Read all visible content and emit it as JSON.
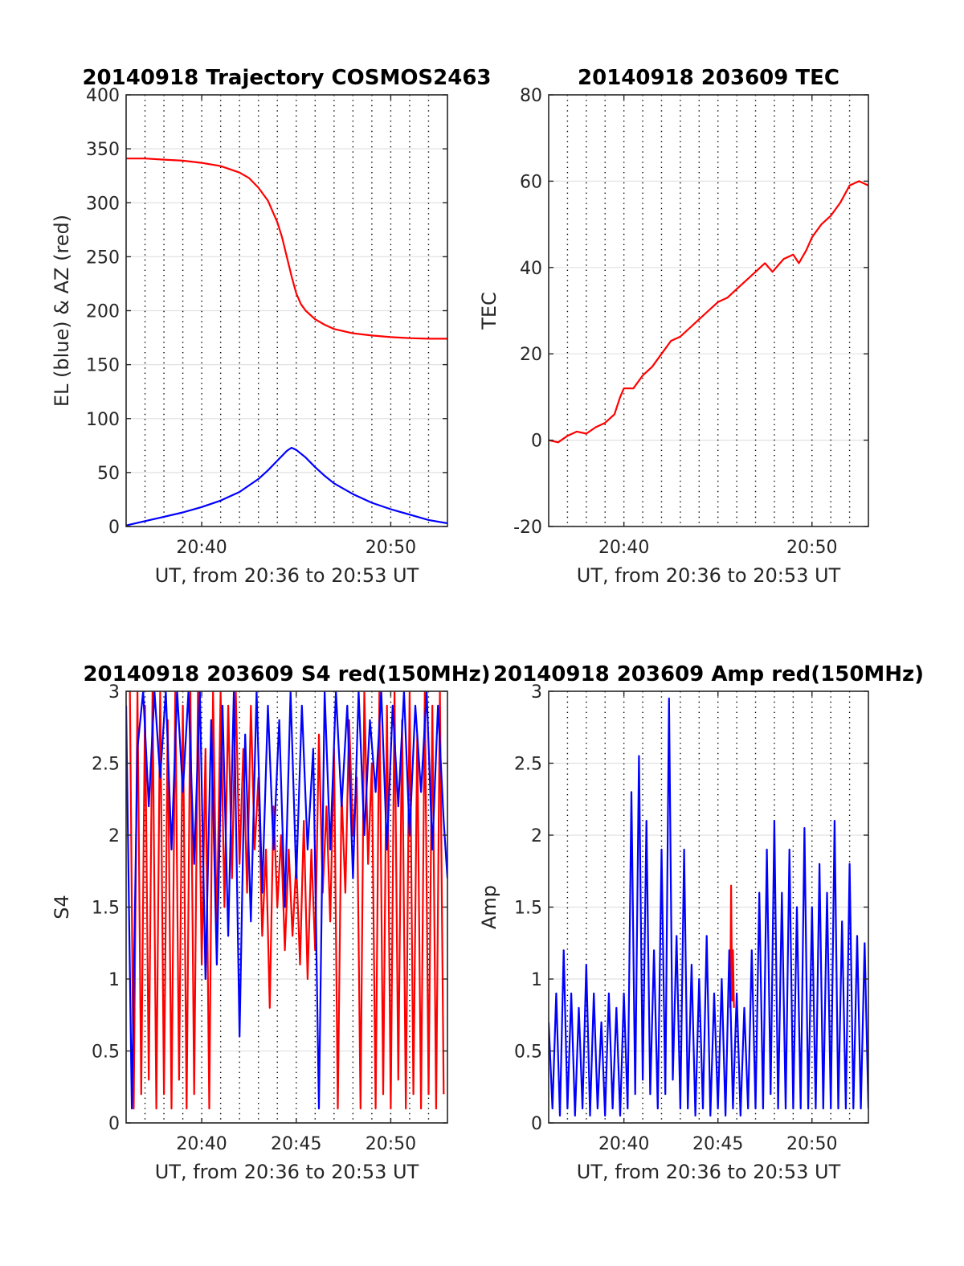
{
  "chart_data": [
    {
      "type": "line",
      "title": "20140918 Trajectory COSMOS2463",
      "xlabel": "UT, from 20:36 to 20:53 UT",
      "ylabel": "EL (blue) & AZ (red)",
      "xlim": [
        0,
        17
      ],
      "ylim": [
        0,
        400
      ],
      "yticks": [
        0,
        50,
        100,
        150,
        200,
        250,
        300,
        350,
        400
      ],
      "xticks": [
        {
          "value": 4,
          "label": "20:40"
        },
        {
          "value": 14,
          "label": "20:50"
        }
      ],
      "grid": true,
      "series": [
        {
          "color": "#ff0000",
          "x": [
            0,
            1,
            2,
            3,
            4,
            5,
            6,
            6.5,
            7,
            7.5,
            8,
            8.25,
            8.5,
            8.75,
            9,
            9.25,
            9.5,
            10,
            10.5,
            11,
            12,
            13,
            14,
            15,
            16,
            17
          ],
          "y": [
            341,
            341,
            340,
            339,
            337,
            334,
            328,
            323,
            314,
            302,
            282,
            268,
            250,
            232,
            216,
            206,
            200,
            192,
            187,
            183,
            179,
            177,
            175.5,
            174.5,
            174,
            174
          ]
        },
        {
          "color": "#0000ff",
          "x": [
            0,
            1,
            2,
            3,
            4,
            5,
            6,
            7,
            7.5,
            8,
            8.5,
            8.75,
            9,
            9.5,
            10,
            10.5,
            11,
            12,
            13,
            14,
            15,
            16,
            17
          ],
          "y": [
            1,
            5,
            9,
            13,
            18,
            24,
            32,
            44,
            52,
            61,
            70,
            73,
            71,
            64,
            55,
            47,
            40,
            30,
            22,
            16,
            11,
            6,
            3
          ]
        }
      ]
    },
    {
      "type": "line",
      "title": "20140918 203609 TEC",
      "xlabel": "UT, from 20:36 to 20:53 UT",
      "ylabel": "TEC",
      "xlim": [
        0,
        17
      ],
      "ylim": [
        -20,
        80
      ],
      "yticks": [
        -20,
        0,
        20,
        40,
        60,
        80
      ],
      "xticks": [
        {
          "value": 4,
          "label": "20:40"
        },
        {
          "value": 14,
          "label": "20:50"
        }
      ],
      "grid": true,
      "series": [
        {
          "color": "#ff0000",
          "x": [
            0,
            0.5,
            1,
            1.5,
            2,
            2.5,
            3,
            3.5,
            3.8,
            4,
            4.5,
            5,
            5.5,
            6,
            6.5,
            7,
            7.5,
            8,
            8.5,
            9,
            9.5,
            10,
            10.5,
            11,
            11.5,
            11.9,
            12.5,
            13,
            13.3,
            13.7,
            14,
            14.5,
            15,
            15.5,
            16,
            16.5,
            17
          ],
          "y": [
            0,
            -0.5,
            1,
            2,
            1.5,
            3,
            4,
            6,
            10,
            12,
            12,
            15,
            17,
            20,
            23,
            24,
            26,
            28,
            30,
            32,
            33,
            35,
            37,
            39,
            41,
            39,
            42,
            43,
            41,
            44,
            47,
            50,
            52,
            55,
            59,
            60,
            59
          ]
        }
      ]
    },
    {
      "type": "line",
      "title": "20140918 203609 S4 red(150MHz)",
      "xlabel": "UT, from 20:36 to 20:53 UT",
      "ylabel": "S4",
      "xlim": [
        0,
        17
      ],
      "ylim": [
        0,
        3
      ],
      "yticks": [
        0,
        0.5,
        1,
        1.5,
        2,
        2.5,
        3
      ],
      "xticks": [
        {
          "value": 4,
          "label": "20:40"
        },
        {
          "value": 9,
          "label": "20:45"
        },
        {
          "value": 14,
          "label": "20:50"
        }
      ],
      "grid": true,
      "series": [
        {
          "color": "#ff0000",
          "x": [
            0.2,
            0.4,
            0.6,
            0.8,
            1,
            1.2,
            1.4,
            1.6,
            1.8,
            2,
            2.2,
            2.4,
            2.6,
            2.8,
            3,
            3.2,
            3.4,
            3.6,
            3.8,
            4,
            4.2,
            4.4,
            4.6,
            4.8,
            5,
            5.2,
            5.4,
            5.6,
            5.8,
            6,
            6.2,
            6.4,
            6.6,
            6.8,
            7,
            7.2,
            7.4,
            7.6,
            7.8,
            8,
            8.2,
            8.4,
            8.6,
            8.8,
            9,
            9.2,
            9.4,
            9.6,
            9.8,
            10,
            10.2,
            10.4,
            10.6,
            10.8,
            11,
            11.2,
            11.4,
            11.6,
            11.8,
            12,
            12.2,
            12.4,
            12.6,
            12.8,
            13,
            13.2,
            13.4,
            13.6,
            13.8,
            14,
            14.2,
            14.4,
            14.6,
            14.8,
            15,
            15.2,
            15.4,
            15.6,
            15.8,
            16,
            16.2,
            16.4,
            16.6,
            16.8
          ],
          "y": [
            3,
            0.1,
            3,
            0.2,
            2.9,
            0.3,
            3,
            0.1,
            3,
            0.2,
            2.8,
            0.1,
            3,
            0.3,
            2.9,
            0.1,
            3,
            0.2,
            3,
            1.1,
            2.6,
            0.1,
            3,
            1.3,
            3,
            1.5,
            2.9,
            1.7,
            3,
            1.8,
            2.6,
            1.6,
            2.9,
            1.9,
            2.4,
            1.3,
            1.9,
            0.8,
            2.2,
            1.5,
            2.0,
            1.2,
            1.9,
            1.3,
            1.8,
            1.1,
            2.1,
            1.0,
            1.9,
            1.2,
            2.7,
            1.6,
            2.2,
            1.4,
            2.6,
            0.1,
            2.3,
            1.6,
            2.8,
            2.0,
            2.4,
            0.1,
            3,
            1.8,
            2.5,
            0.1,
            3,
            0.2,
            2.9,
            0.1,
            3,
            0.3,
            2.8,
            0.1,
            3,
            0.2,
            2.7,
            0.1,
            3,
            0.2,
            2.9,
            0.1,
            3,
            0.2
          ]
        },
        {
          "color": "#0000ff",
          "x": [
            0,
            0.3,
            0.6,
            0.9,
            1.2,
            1.5,
            1.8,
            2.1,
            2.4,
            2.7,
            3,
            3.3,
            3.6,
            3.9,
            4.2,
            4.5,
            4.8,
            5.1,
            5.4,
            5.7,
            6,
            6.3,
            6.6,
            6.9,
            7.2,
            7.5,
            7.8,
            8.1,
            8.4,
            8.7,
            9,
            9.3,
            9.6,
            9.9,
            10.2,
            10.5,
            10.8,
            11.1,
            11.4,
            11.7,
            12,
            12.3,
            12.6,
            12.9,
            13.2,
            13.5,
            13.8,
            14.1,
            14.4,
            14.7,
            15,
            15.3,
            15.6,
            15.9,
            16.2,
            16.5,
            16.8,
            17
          ],
          "y": [
            2.9,
            0.1,
            2.6,
            3,
            2.2,
            3,
            2.4,
            3,
            1.9,
            3,
            2.3,
            3,
            1.8,
            3,
            1.0,
            2.8,
            1.1,
            2.9,
            1.3,
            3,
            0.6,
            2.7,
            1.4,
            3,
            1.6,
            2.9,
            1.9,
            2.8,
            1.5,
            3,
            1.7,
            2.9,
            1.9,
            2.6,
            0.1,
            3,
            1.9,
            3,
            2.2,
            2.9,
            1.7,
            3,
            2.0,
            2.8,
            2.3,
            3,
            1.9,
            2.9,
            2.2,
            3,
            2.0,
            2.9,
            2.3,
            3,
            1.9,
            2.9,
            2.1,
            1.7
          ]
        }
      ]
    },
    {
      "type": "line",
      "title": "20140918 203609 Amp red(150MHz)",
      "xlabel": "UT, from 20:36 to 20:53 UT",
      "ylabel": "Amp",
      "xlim": [
        0,
        17
      ],
      "ylim": [
        0,
        3
      ],
      "yticks": [
        0,
        0.5,
        1,
        1.5,
        2,
        2.5,
        3
      ],
      "xticks": [
        {
          "value": 4,
          "label": "20:40"
        },
        {
          "value": 9,
          "label": "20:45"
        },
        {
          "value": 14,
          "label": "20:50"
        }
      ],
      "grid": true,
      "series": [
        {
          "color": "#ff0000",
          "x": [
            9.65,
            9.7,
            9.75,
            9.8,
            9.85
          ],
          "y": [
            0.8,
            1.65,
            0.85,
            1.2,
            0.8
          ]
        },
        {
          "color": "#0000ff",
          "x": [
            0,
            0.2,
            0.4,
            0.6,
            0.8,
            1,
            1.2,
            1.4,
            1.6,
            1.8,
            2,
            2.2,
            2.4,
            2.6,
            2.8,
            3,
            3.2,
            3.4,
            3.6,
            3.8,
            4,
            4.2,
            4.4,
            4.6,
            4.8,
            5,
            5.2,
            5.4,
            5.6,
            5.8,
            6,
            6.2,
            6.4,
            6.6,
            6.8,
            7,
            7.2,
            7.4,
            7.6,
            7.8,
            8,
            8.2,
            8.4,
            8.6,
            8.8,
            9,
            9.2,
            9.4,
            9.6,
            9.8,
            10,
            10.2,
            10.4,
            10.6,
            10.8,
            11,
            11.2,
            11.4,
            11.6,
            11.8,
            12,
            12.2,
            12.4,
            12.6,
            12.8,
            13,
            13.2,
            13.4,
            13.6,
            13.8,
            14,
            14.2,
            14.4,
            14.6,
            14.8,
            15,
            15.2,
            15.4,
            15.6,
            15.8,
            16,
            16.2,
            16.4,
            16.6,
            16.8,
            17
          ],
          "y": [
            0.7,
            0.1,
            0.9,
            0.05,
            1.2,
            0.1,
            0.9,
            0.05,
            0.8,
            0.1,
            1.1,
            0.05,
            0.9,
            0.1,
            0.7,
            0.05,
            0.9,
            0.1,
            0.8,
            0.05,
            0.9,
            0.1,
            2.3,
            0.2,
            2.55,
            0.3,
            2.1,
            0.2,
            1.2,
            0.1,
            1.9,
            0.2,
            2.95,
            0.3,
            1.3,
            0.1,
            1.9,
            0.1,
            1.1,
            0.05,
            1.0,
            0.1,
            1.3,
            0.05,
            0.9,
            0.1,
            1.0,
            0.05,
            1.2,
            0.1,
            0.9,
            0.05,
            0.8,
            0.1,
            1.2,
            0.1,
            1.6,
            0.1,
            1.9,
            0.2,
            2.1,
            0.1,
            1.6,
            0.1,
            1.9,
            0.1,
            1.5,
            0.1,
            2.05,
            0.1,
            1.5,
            0.1,
            1.8,
            0.1,
            1.6,
            0.1,
            2.1,
            0.1,
            1.4,
            0.1,
            1.8,
            0.1,
            1.3,
            0.1,
            1.25,
            0.1
          ]
        }
      ]
    }
  ]
}
